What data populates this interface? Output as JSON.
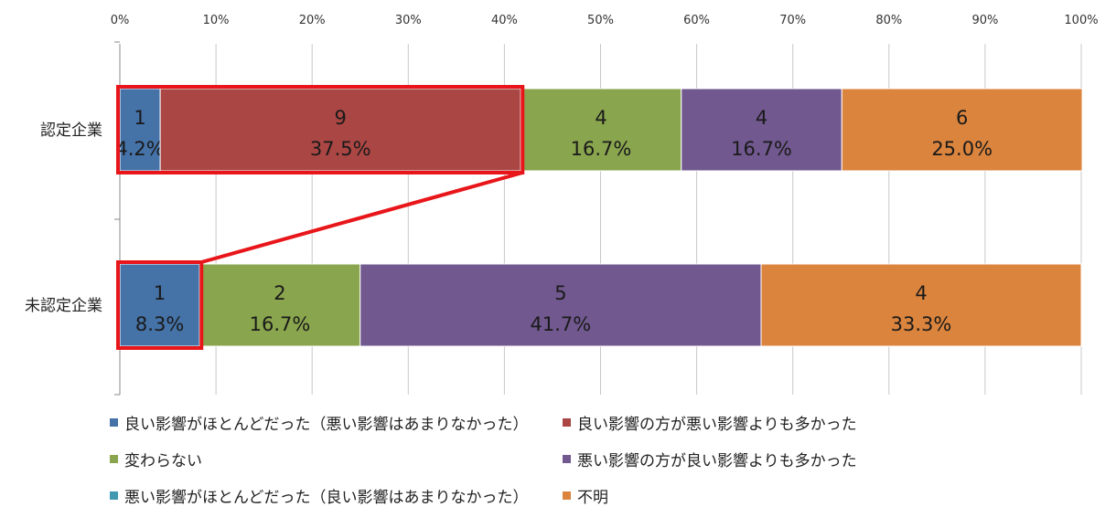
{
  "chart_data": {
    "type": "bar",
    "orientation": "horizontal",
    "stacked": "percent",
    "title": "",
    "xlabel": "",
    "ylabel": "",
    "xlim": [
      0,
      100
    ],
    "x_ticks": [
      "0%",
      "10%",
      "20%",
      "30%",
      "40%",
      "50%",
      "60%",
      "70%",
      "80%",
      "90%",
      "100%"
    ],
    "grid": true,
    "legend_position": "bottom",
    "categories": [
      "認定企業",
      "未認定企業"
    ],
    "series": [
      {
        "name": "良い影響がほとんどだった（悪い影響はあまりなかった）",
        "color": "#4572A7",
        "counts": [
          1,
          1
        ],
        "values": [
          4.2,
          8.3
        ],
        "labels": [
          "4.2%",
          "8.3%"
        ]
      },
      {
        "name": "良い影響の方が悪い影響よりも多かった",
        "color": "#AA4643",
        "counts": [
          9,
          0
        ],
        "values": [
          37.5,
          0
        ],
        "labels": [
          "37.5%",
          ""
        ]
      },
      {
        "name": "変わらない",
        "color": "#89A54E",
        "counts": [
          4,
          2
        ],
        "values": [
          16.7,
          16.7
        ],
        "labels": [
          "16.7%",
          "16.7%"
        ]
      },
      {
        "name": "悪い影響の方が良い影響よりも多かった",
        "color": "#71588F",
        "counts": [
          4,
          5
        ],
        "values": [
          16.7,
          41.7
        ],
        "labels": [
          "16.7%",
          "41.7%"
        ]
      },
      {
        "name": "悪い影響がほとんどだった（良い影響はあまりなかった）",
        "color": "#4198AF",
        "counts": [
          0,
          0
        ],
        "values": [
          0,
          0
        ],
        "labels": [
          "",
          ""
        ]
      },
      {
        "name": "不明",
        "color": "#DB843D",
        "counts": [
          6,
          4
        ],
        "values": [
          25.0,
          33.3
        ],
        "labels": [
          "25.0%",
          "33.3%"
        ]
      }
    ],
    "highlight_color": "#E8161A"
  }
}
